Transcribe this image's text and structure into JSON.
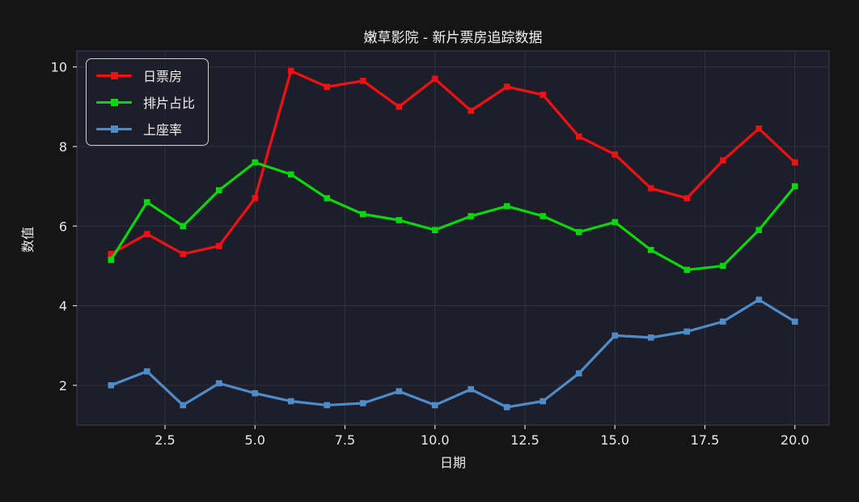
{
  "title": "嫩草影院 - 新片票房追踪数据",
  "chart_data": {
    "type": "line",
    "title": "嫩草影院 - 新片票房追踪数据",
    "xlabel": "日期",
    "ylabel": "数值",
    "x": [
      1,
      2,
      3,
      4,
      5,
      6,
      7,
      8,
      9,
      10,
      11,
      12,
      13,
      14,
      15,
      16,
      17,
      18,
      19,
      20
    ],
    "series": [
      {
        "name": "日票房",
        "color": "#f01212",
        "values": [
          5.3,
          5.8,
          5.3,
          5.5,
          6.7,
          9.9,
          9.5,
          9.65,
          9.0,
          9.7,
          8.9,
          9.5,
          9.3,
          8.25,
          7.8,
          6.95,
          6.7,
          7.65,
          8.45,
          7.6
        ]
      },
      {
        "name": "排片占比",
        "color": "#0bd60b",
        "values": [
          5.15,
          6.6,
          6.0,
          6.9,
          7.6,
          7.3,
          6.7,
          6.3,
          6.15,
          5.9,
          6.25,
          6.5,
          6.25,
          5.85,
          6.1,
          5.4,
          4.9,
          5.0,
          5.9,
          7.0
        ]
      },
      {
        "name": "上座率",
        "color": "#4d8bc9",
        "values": [
          2.0,
          2.35,
          1.5,
          2.05,
          1.8,
          1.6,
          1.5,
          1.55,
          1.85,
          1.5,
          1.9,
          1.45,
          1.6,
          2.3,
          3.25,
          3.2,
          3.35,
          3.6,
          4.15,
          3.6
        ]
      }
    ],
    "xticks": [
      2.5,
      5.0,
      7.5,
      10.0,
      12.5,
      15.0,
      17.5,
      20.0
    ],
    "xtick_labels": [
      "2.5",
      "5.0",
      "7.5",
      "10.0",
      "12.5",
      "15.0",
      "17.5",
      "20.0"
    ],
    "yticks": [
      2,
      4,
      6,
      8,
      10
    ],
    "ytick_labels": [
      "2",
      "4",
      "6",
      "8",
      "10"
    ],
    "xlim": [
      0.05,
      20.95
    ],
    "ylim": [
      1.0,
      10.4
    ],
    "grid": true,
    "legend_position": "upper left"
  },
  "style": {
    "figure_bg": "#151515",
    "plot_bg": "#1e1e2b",
    "grid_color": "#32323f",
    "spine_color": "#3e3e4c",
    "tick_color": "#d8d8d8",
    "text_color": "#e9e9e9"
  }
}
